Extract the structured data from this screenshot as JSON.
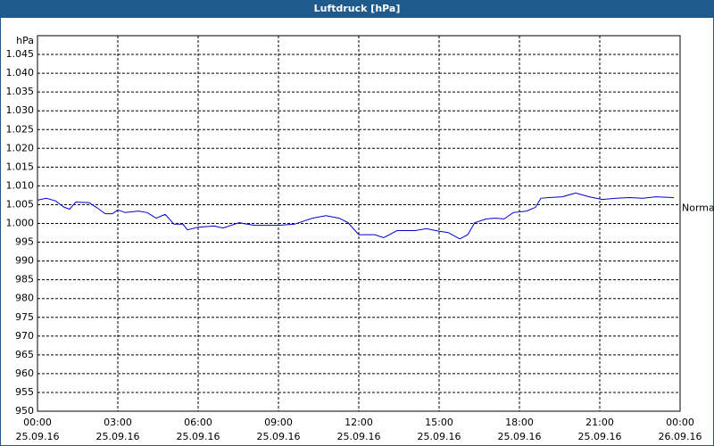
{
  "chart_data": {
    "type": "line",
    "title": "Luftdruck [hPa]",
    "y_unit": "hPa",
    "normal": {
      "label": "Normal",
      "value": 1005
    },
    "x": [
      0,
      0.33,
      0.67,
      1,
      1.2,
      1.43,
      1.93,
      2.2,
      2.53,
      2.8,
      3,
      3.27,
      3.77,
      4.1,
      4.43,
      4.77,
      5.1,
      5.43,
      5.6,
      6,
      6.6,
      6.93,
      7.53,
      8.1,
      9,
      9.6,
      10.27,
      10.77,
      11.27,
      11.6,
      12,
      12.6,
      12.93,
      13.43,
      14.1,
      14.53,
      15,
      15.33,
      15.77,
      16.07,
      16.33,
      16.77,
      17.1,
      17.43,
      17.77,
      18.27,
      18.6,
      18.8,
      19.1,
      19.6,
      20.1,
      20.6,
      21.1,
      21.6,
      22.1,
      22.6,
      23.1,
      23.77
    ],
    "series": [
      {
        "name": "Luftdruck",
        "color": "#0000cc",
        "values": [
          1006.2,
          1006.7,
          1006,
          1004.3,
          1003.8,
          1005.7,
          1005.5,
          1004.3,
          1002.6,
          1002.6,
          1003.6,
          1002.9,
          1003.3,
          1002.9,
          1001.4,
          1002.4,
          999.8,
          999.8,
          998.3,
          999,
          999.3,
          998.8,
          1000.2,
          999.5,
          999.5,
          999.8,
          1001.4,
          1002.1,
          1001.4,
          1000.2,
          997,
          997,
          996.2,
          998.1,
          998.1,
          998.6,
          997.9,
          997.6,
          995.9,
          997,
          1000.2,
          1001.2,
          1001.4,
          1001.2,
          1002.9,
          1003.3,
          1004.3,
          1006.7,
          1006.9,
          1007.1,
          1008.1,
          1007.1,
          1006.4,
          1006.7,
          1006.9,
          1006.7,
          1007.1,
          1006.9
        ]
      }
    ],
    "xlim": [
      0,
      24
    ],
    "xticks": [
      {
        "value": 0,
        "label": "00:00",
        "date": "25.09.16"
      },
      {
        "value": 3,
        "label": "03:00",
        "date": "25.09.16"
      },
      {
        "value": 6,
        "label": "06:00",
        "date": "25.09.16"
      },
      {
        "value": 9,
        "label": "09:00",
        "date": "25.09.16"
      },
      {
        "value": 12,
        "label": "12:00",
        "date": "25.09.16"
      },
      {
        "value": 15,
        "label": "15:00",
        "date": "25.09.16"
      },
      {
        "value": 18,
        "label": "18:00",
        "date": "25.09.16"
      },
      {
        "value": 21,
        "label": "21:00",
        "date": "25.09.16"
      },
      {
        "value": 24,
        "label": "00:00",
        "date": "26.09.16"
      }
    ],
    "ylim": [
      950,
      1050
    ],
    "yticks": [
      950,
      955,
      960,
      965,
      970,
      975,
      980,
      985,
      990,
      995,
      {
        "value": 1000,
        "label": "1.000"
      },
      {
        "value": 1005,
        "label": "1.005"
      },
      {
        "value": 1010,
        "label": "1.010"
      },
      {
        "value": 1015,
        "label": "1.015"
      },
      {
        "value": 1020,
        "label": "1.020"
      },
      {
        "value": 1025,
        "label": "1.025"
      },
      {
        "value": 1030,
        "label": "1.030"
      },
      {
        "value": 1035,
        "label": "1.035"
      },
      {
        "value": 1040,
        "label": "1.040"
      },
      {
        "value": 1045,
        "label": "1.045"
      }
    ],
    "grid": true
  }
}
